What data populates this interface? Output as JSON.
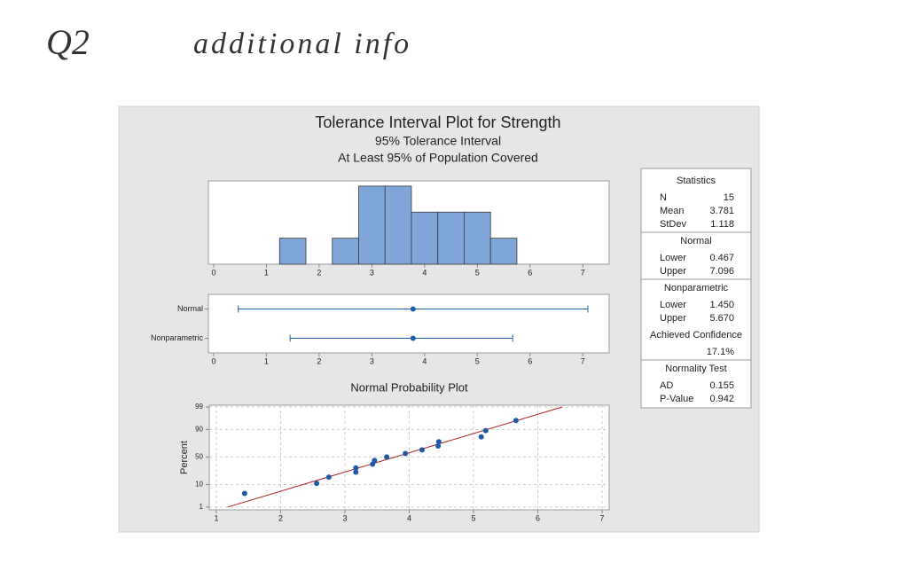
{
  "note": {
    "label": "Q2",
    "text": "additional info"
  },
  "panel": {
    "title": "Tolerance Interval Plot for Strength",
    "subtitles": [
      "95% Tolerance Interval",
      "At Least 95% of Population Covered"
    ]
  },
  "chart_data": [
    {
      "type": "histogram",
      "bins": [
        1.25,
        1.75,
        2.25,
        2.75,
        3.25,
        3.75,
        4.25,
        4.75,
        5.25,
        5.75
      ],
      "counts": [
        1,
        0,
        1,
        3,
        3,
        2,
        2,
        2,
        1
      ],
      "color": "#7ea6d8",
      "xlim": [
        -0.1,
        7.5
      ],
      "xticks": [
        0,
        1,
        2,
        3,
        4,
        5,
        6,
        7
      ],
      "ylim": [
        0,
        3.2
      ]
    },
    {
      "type": "interval",
      "categories": [
        "Normal",
        "Nonparametric"
      ],
      "lower": [
        0.467,
        1.45
      ],
      "upper": [
        7.096,
        5.67
      ],
      "values": [
        3.781,
        3.781
      ],
      "color": "#1f5fa8",
      "xlim": [
        -0.1,
        7.5
      ],
      "xticks": [
        0,
        1,
        2,
        3,
        4,
        5,
        6,
        7
      ]
    },
    {
      "type": "scatter",
      "title": "Normal Probability Plot",
      "y_label": "Percent",
      "x": [
        1.44,
        2.56,
        2.75,
        3.17,
        3.17,
        3.43,
        3.46,
        3.65,
        3.94,
        4.2,
        4.45,
        4.46,
        5.12,
        5.19,
        5.66
      ],
      "y": [
        4.5,
        11.0,
        17.5,
        24.0,
        30.5,
        37.0,
        43.5,
        50.0,
        56.5,
        63.0,
        69.5,
        76.0,
        82.5,
        89.0,
        95.5
      ],
      "color": "#1f5aa6",
      "xlim": [
        0.89,
        7.11
      ],
      "xticks": [
        1,
        2,
        3,
        4,
        5,
        6,
        7
      ],
      "ylim": [
        0.7,
        99.2
      ],
      "yticks": [
        1,
        10,
        50,
        90,
        99
      ],
      "y_scale": "normal-probability",
      "grid": true,
      "fit_line": {
        "x": [
          1.18,
          6.38
        ],
        "y": [
          1,
          99
        ],
        "color": "#b22222"
      }
    }
  ],
  "statistics": {
    "sections": [
      {
        "title": "Statistics",
        "rows": [
          [
            "N",
            "15"
          ],
          [
            "Mean",
            "3.781"
          ],
          [
            "StDev",
            "1.118"
          ]
        ]
      },
      {
        "title": "Normal",
        "rows": [
          [
            "Lower",
            "0.467"
          ],
          [
            "Upper",
            "7.096"
          ]
        ]
      },
      {
        "title": "Nonparametric",
        "rows": [
          [
            "Lower",
            "1.450"
          ],
          [
            "Upper",
            "5.670"
          ]
        ],
        "note": "Achieved Confidence",
        "note_value": "17.1%"
      },
      {
        "title": "Normality Test",
        "rows": [
          [
            "AD",
            "0.155"
          ],
          [
            "P-Value",
            "0.942"
          ]
        ]
      }
    ]
  }
}
